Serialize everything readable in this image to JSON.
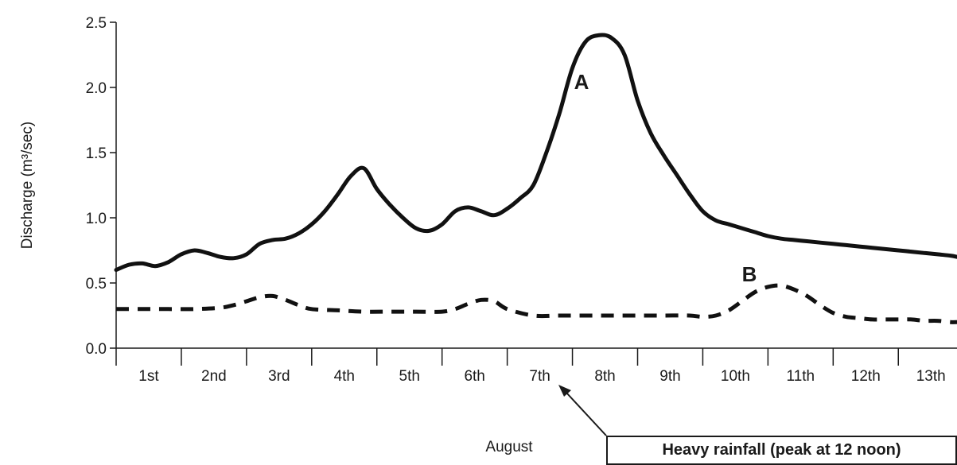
{
  "chart_data": {
    "type": "line",
    "ylabel": "Discharge (m³/sec)",
    "xlabel": "August",
    "categories": [
      "1st",
      "2nd",
      "3rd",
      "4th",
      "5th",
      "6th",
      "7th",
      "8th",
      "9th",
      "10th",
      "11th",
      "12th",
      "13th"
    ],
    "x_range": [
      1,
      13.9
    ],
    "ylim": [
      0.0,
      2.5
    ],
    "y_ticks": [
      "0.0",
      "0.5",
      "1.0",
      "1.5",
      "2.0",
      "2.5"
    ],
    "grid": false,
    "annotation": {
      "text": "Heavy rainfall (peak at 12 noon)",
      "points_to_day": 7
    },
    "series": [
      {
        "name": "A",
        "style": "solid",
        "x": [
          1.0,
          1.2,
          1.4,
          1.6,
          1.8,
          2.0,
          2.2,
          2.4,
          2.6,
          2.8,
          3.0,
          3.2,
          3.4,
          3.6,
          3.8,
          4.0,
          4.2,
          4.4,
          4.6,
          4.8,
          5.0,
          5.2,
          5.4,
          5.6,
          5.8,
          6.0,
          6.2,
          6.4,
          6.6,
          6.8,
          7.0,
          7.2,
          7.4,
          7.6,
          7.8,
          8.0,
          8.2,
          8.4,
          8.6,
          8.8,
          9.0,
          9.2,
          9.4,
          9.6,
          9.8,
          10.0,
          10.2,
          10.4,
          10.6,
          10.8,
          11.0,
          11.2,
          11.4,
          11.6,
          11.8,
          12.0,
          12.2,
          12.4,
          12.6,
          12.8,
          13.0,
          13.2,
          13.4,
          13.6,
          13.8,
          13.9
        ],
        "values": [
          0.6,
          0.64,
          0.65,
          0.63,
          0.66,
          0.72,
          0.75,
          0.73,
          0.7,
          0.69,
          0.72,
          0.8,
          0.83,
          0.84,
          0.88,
          0.95,
          1.05,
          1.18,
          1.32,
          1.38,
          1.22,
          1.1,
          1.0,
          0.92,
          0.9,
          0.95,
          1.05,
          1.08,
          1.05,
          1.02,
          1.07,
          1.15,
          1.25,
          1.5,
          1.8,
          2.15,
          2.35,
          2.4,
          2.38,
          2.25,
          1.9,
          1.65,
          1.48,
          1.33,
          1.18,
          1.05,
          0.98,
          0.95,
          0.92,
          0.89,
          0.86,
          0.84,
          0.83,
          0.82,
          0.81,
          0.8,
          0.79,
          0.78,
          0.77,
          0.76,
          0.75,
          0.74,
          0.73,
          0.72,
          0.71,
          0.7
        ]
      },
      {
        "name": "B",
        "style": "dashed",
        "x": [
          1.0,
          1.4,
          1.8,
          2.2,
          2.6,
          2.8,
          3.0,
          3.2,
          3.4,
          3.6,
          3.8,
          4.0,
          4.4,
          4.8,
          5.2,
          5.6,
          6.0,
          6.2,
          6.4,
          6.6,
          6.8,
          7.0,
          7.4,
          7.8,
          8.2,
          8.6,
          9.0,
          9.4,
          9.8,
          10.0,
          10.2,
          10.4,
          10.6,
          10.8,
          11.0,
          11.2,
          11.4,
          11.6,
          11.8,
          12.0,
          12.2,
          12.4,
          12.6,
          12.8,
          13.0,
          13.2,
          13.4,
          13.6,
          13.8,
          13.9
        ],
        "values": [
          0.3,
          0.3,
          0.3,
          0.3,
          0.31,
          0.33,
          0.36,
          0.39,
          0.4,
          0.37,
          0.33,
          0.3,
          0.29,
          0.28,
          0.28,
          0.28,
          0.28,
          0.3,
          0.34,
          0.37,
          0.36,
          0.3,
          0.25,
          0.25,
          0.25,
          0.25,
          0.25,
          0.25,
          0.25,
          0.24,
          0.25,
          0.29,
          0.36,
          0.43,
          0.47,
          0.48,
          0.45,
          0.4,
          0.33,
          0.27,
          0.24,
          0.23,
          0.22,
          0.22,
          0.22,
          0.22,
          0.21,
          0.21,
          0.2,
          0.2
        ]
      }
    ]
  }
}
